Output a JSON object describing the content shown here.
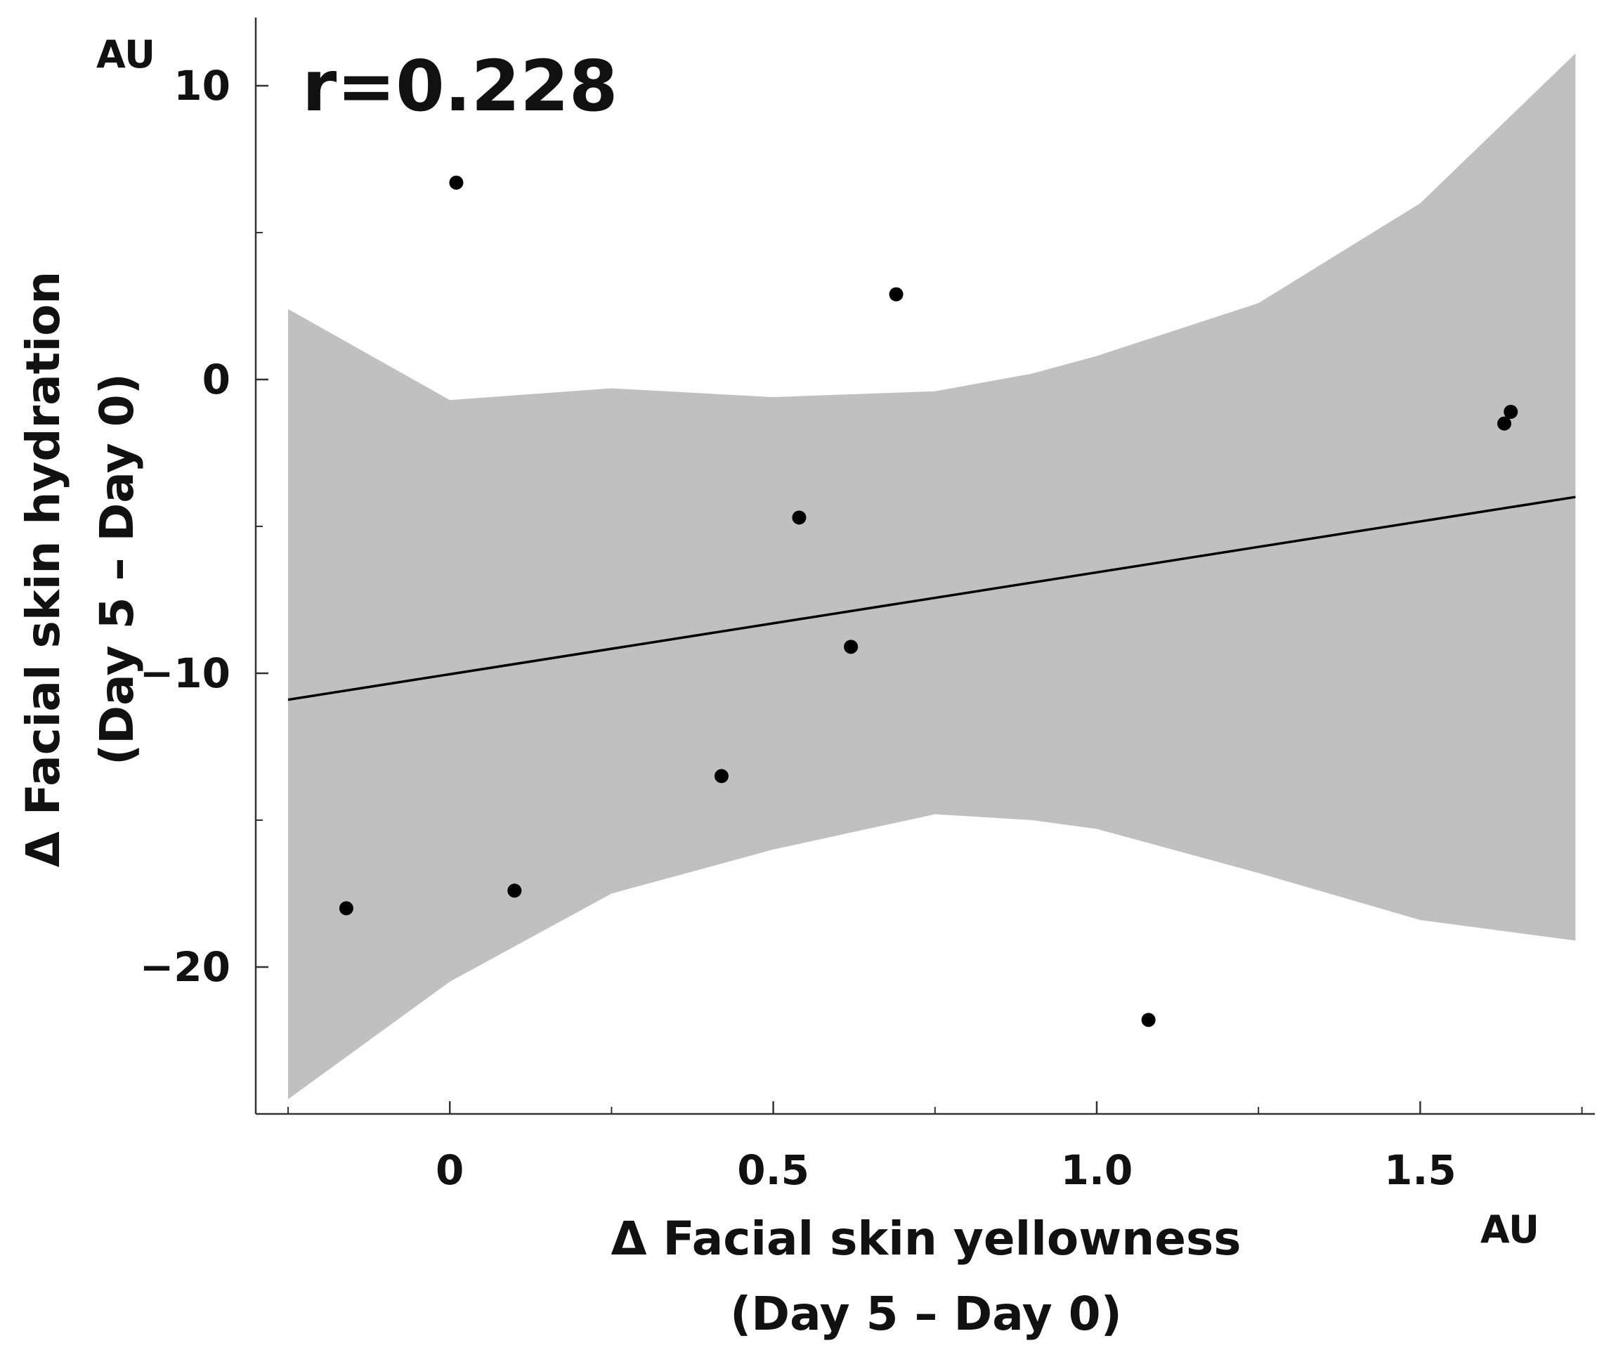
{
  "chart_data": {
    "type": "scatter",
    "title": "",
    "annotation": "r=0.228",
    "xlabel_line1": "Δ Facial skin yellowness",
    "xlabel_line2": "(Day 5 – Day 0)",
    "xunit": "AU",
    "ylabel_line1": "Δ Facial skin hydration",
    "ylabel_line2": "(Day 5 – Day 0)",
    "yunit": "AU",
    "xlim": [
      -0.3,
      1.77
    ],
    "ylim": [
      -25,
      12.2
    ],
    "x_ticks": [
      0,
      0.5,
      1.0,
      1.5
    ],
    "x_tick_labels": [
      "0",
      "0.5",
      "1.0",
      "1.5"
    ],
    "x_minor_ticks": [
      -0.25,
      0.25,
      0.75,
      1.25,
      1.75
    ],
    "y_ticks": [
      -20,
      -10,
      0,
      10
    ],
    "y_tick_labels": [
      "−20",
      "−10",
      "0",
      "10"
    ],
    "y_minor_ticks": [
      -15,
      -5,
      5
    ],
    "series": [
      {
        "name": "data",
        "x": [
          -0.16,
          0.01,
          0.1,
          0.42,
          0.54,
          0.62,
          0.69,
          1.08,
          1.63,
          1.64
        ],
        "y": [
          -18.0,
          6.7,
          -17.4,
          -13.5,
          -4.7,
          -9.1,
          2.9,
          -21.8,
          -1.5,
          -1.1
        ]
      }
    ],
    "fit_line": {
      "x": [
        -0.25,
        1.74
      ],
      "y": [
        -10.9,
        -4.0
      ]
    },
    "confidence_band": {
      "x": [
        -0.25,
        0.0,
        0.25,
        0.5,
        0.75,
        0.9,
        1.0,
        1.25,
        1.5,
        1.74
      ],
      "upper": [
        2.4,
        -0.7,
        -0.3,
        -0.6,
        -0.4,
        0.2,
        0.8,
        2.6,
        6.0,
        11.1
      ],
      "lower": [
        -24.5,
        -20.5,
        -17.5,
        -16.0,
        -14.8,
        -15.0,
        -15.3,
        -16.8,
        -18.4,
        -19.1
      ]
    },
    "colors": {
      "band": "#c0c0c0",
      "line": "#000000",
      "points": "#000000",
      "axis": "#333333"
    }
  }
}
